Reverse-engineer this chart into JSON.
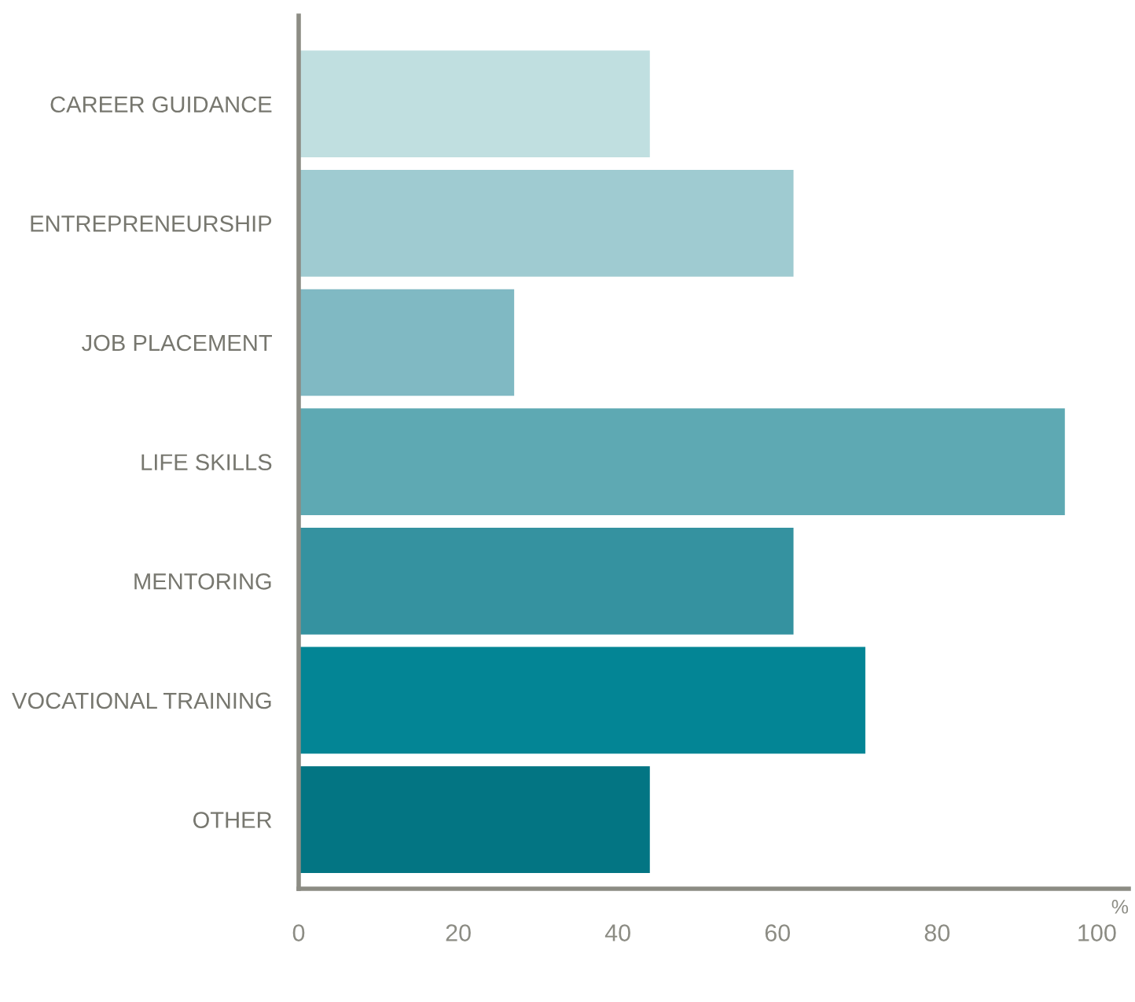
{
  "chart_data": {
    "type": "bar",
    "orientation": "horizontal",
    "categories": [
      "CAREER GUIDANCE",
      "ENTREPRENEURSHIP",
      "JOB PLACEMENT",
      "LIFE SKILLS",
      "MENTORING",
      "VOCATIONAL TRAINING",
      "OTHER"
    ],
    "values": [
      44,
      62,
      27,
      96,
      62,
      71,
      44
    ],
    "colors": [
      "#c0dfe0",
      "#9fcbd1",
      "#80b9c3",
      "#5ea9b3",
      "#3592a0",
      "#038595",
      "#037583"
    ],
    "xlabel": "%",
    "xlim": [
      0,
      104
    ],
    "xticks": [
      0,
      20,
      40,
      60,
      80,
      100
    ],
    "grid": false,
    "legend": false
  }
}
